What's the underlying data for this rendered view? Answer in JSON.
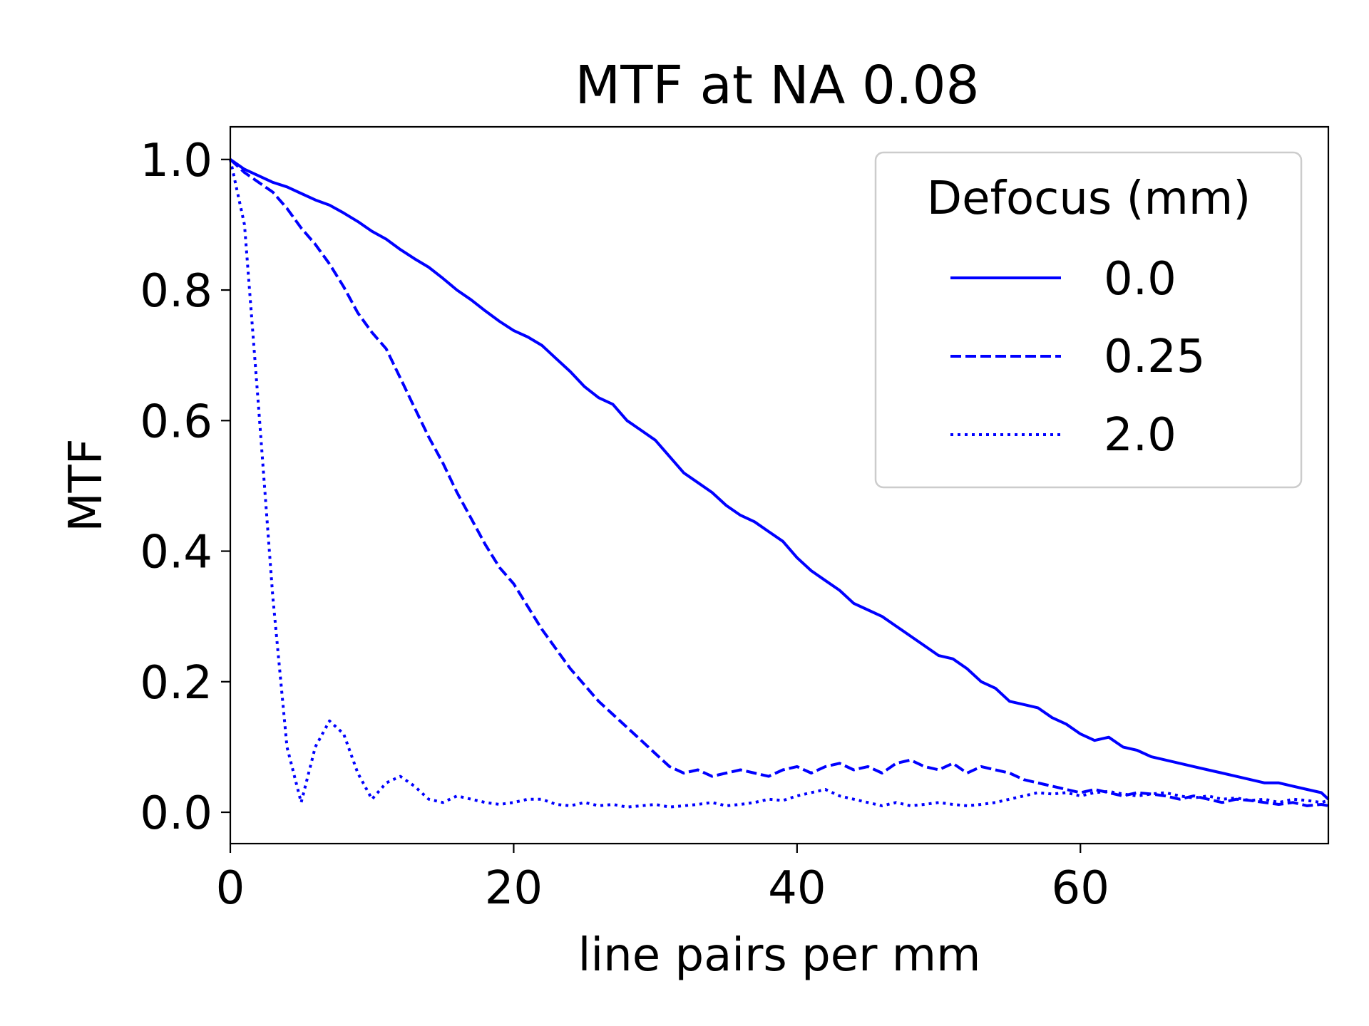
{
  "chart_data": {
    "type": "line",
    "title": "MTF at NA 0.08",
    "xlabel": "line pairs per mm",
    "ylabel": "MTF",
    "xlim": [
      0,
      77.5
    ],
    "ylim": [
      -0.048,
      1.05
    ],
    "xticks": [
      0,
      20,
      40,
      60
    ],
    "xtick_labels": [
      "0",
      "20",
      "40",
      "60"
    ],
    "yticks": [
      0.0,
      0.2,
      0.4,
      0.6,
      0.8,
      1.0
    ],
    "ytick_labels": [
      "0.0",
      "0.2",
      "0.4",
      "0.6",
      "0.8",
      "1.0"
    ],
    "grid": false,
    "line_color": "#0000ff",
    "legend": {
      "title": "Defocus (mm)",
      "position": "top-right",
      "entries": [
        "0.0",
        "0.25",
        "2.0"
      ]
    },
    "series": [
      {
        "name": "0.0",
        "style": "solid",
        "x": [
          0,
          1,
          2,
          3,
          4,
          5,
          6,
          7,
          8,
          9,
          10,
          11,
          12,
          13,
          14,
          15,
          16,
          17,
          18,
          19,
          20,
          21,
          22,
          23,
          24,
          25,
          26,
          27,
          28,
          29,
          30,
          31,
          32,
          33,
          34,
          35,
          36,
          37,
          38,
          39,
          40,
          41,
          42,
          43,
          44,
          45,
          46,
          47,
          48,
          49,
          50,
          51,
          52,
          53,
          54,
          55,
          56,
          57,
          58,
          59,
          60,
          61,
          62,
          63,
          64,
          65,
          66,
          67,
          68,
          69,
          70,
          71,
          72,
          73,
          74,
          75,
          76,
          77,
          77.5
        ],
        "y": [
          1.0,
          0.985,
          0.975,
          0.965,
          0.958,
          0.948,
          0.938,
          0.93,
          0.918,
          0.905,
          0.89,
          0.878,
          0.862,
          0.848,
          0.835,
          0.818,
          0.8,
          0.785,
          0.768,
          0.752,
          0.738,
          0.728,
          0.715,
          0.695,
          0.675,
          0.652,
          0.635,
          0.625,
          0.6,
          0.585,
          0.57,
          0.545,
          0.52,
          0.505,
          0.49,
          0.47,
          0.455,
          0.445,
          0.43,
          0.415,
          0.39,
          0.37,
          0.355,
          0.34,
          0.32,
          0.31,
          0.3,
          0.285,
          0.27,
          0.255,
          0.24,
          0.235,
          0.22,
          0.2,
          0.19,
          0.17,
          0.165,
          0.16,
          0.145,
          0.135,
          0.12,
          0.11,
          0.115,
          0.1,
          0.095,
          0.085,
          0.08,
          0.075,
          0.07,
          0.065,
          0.06,
          0.055,
          0.05,
          0.045,
          0.045,
          0.04,
          0.035,
          0.03,
          0.02
        ]
      },
      {
        "name": "0.25",
        "style": "dashed",
        "x": [
          0,
          1,
          2,
          3,
          4,
          5,
          6,
          7,
          8,
          9,
          10,
          11,
          12,
          13,
          14,
          15,
          16,
          17,
          18,
          19,
          20,
          21,
          22,
          23,
          24,
          25,
          26,
          27,
          28,
          29,
          30,
          31,
          32,
          33,
          34,
          35,
          36,
          37,
          38,
          39,
          40,
          41,
          42,
          43,
          44,
          45,
          46,
          47,
          48,
          49,
          50,
          51,
          52,
          53,
          54,
          55,
          56,
          57,
          58,
          59,
          60,
          61,
          62,
          63,
          64,
          65,
          66,
          67,
          68,
          69,
          70,
          71,
          72,
          73,
          74,
          75,
          76,
          77,
          77.5
        ],
        "y": [
          1.0,
          0.98,
          0.965,
          0.95,
          0.925,
          0.895,
          0.87,
          0.84,
          0.805,
          0.765,
          0.735,
          0.71,
          0.665,
          0.62,
          0.575,
          0.535,
          0.49,
          0.45,
          0.41,
          0.375,
          0.35,
          0.315,
          0.28,
          0.25,
          0.22,
          0.195,
          0.17,
          0.15,
          0.13,
          0.11,
          0.09,
          0.07,
          0.06,
          0.065,
          0.055,
          0.06,
          0.065,
          0.06,
          0.055,
          0.065,
          0.07,
          0.06,
          0.07,
          0.075,
          0.065,
          0.07,
          0.06,
          0.075,
          0.08,
          0.07,
          0.065,
          0.075,
          0.06,
          0.07,
          0.065,
          0.06,
          0.05,
          0.045,
          0.04,
          0.035,
          0.03,
          0.035,
          0.03,
          0.025,
          0.03,
          0.028,
          0.025,
          0.02,
          0.025,
          0.02,
          0.015,
          0.02,
          0.018,
          0.015,
          0.012,
          0.015,
          0.01,
          0.012,
          0.01
        ]
      },
      {
        "name": "2.0",
        "style": "dotted",
        "x": [
          0,
          1,
          2,
          3,
          4,
          5,
          6,
          7,
          8,
          9,
          10,
          11,
          12,
          13,
          14,
          15,
          16,
          17,
          18,
          19,
          20,
          21,
          22,
          23,
          24,
          25,
          26,
          27,
          28,
          29,
          30,
          31,
          32,
          33,
          34,
          35,
          36,
          37,
          38,
          39,
          40,
          41,
          42,
          43,
          44,
          45,
          46,
          47,
          48,
          49,
          50,
          51,
          52,
          53,
          54,
          55,
          56,
          57,
          58,
          59,
          60,
          61,
          62,
          63,
          64,
          65,
          66,
          67,
          68,
          69,
          70,
          71,
          72,
          73,
          74,
          75,
          76,
          77,
          77.5
        ],
        "y": [
          1.0,
          0.9,
          0.62,
          0.33,
          0.1,
          0.015,
          0.1,
          0.14,
          0.12,
          0.06,
          0.02,
          0.045,
          0.055,
          0.04,
          0.02,
          0.015,
          0.025,
          0.02,
          0.015,
          0.012,
          0.015,
          0.02,
          0.02,
          0.012,
          0.01,
          0.015,
          0.01,
          0.012,
          0.008,
          0.01,
          0.012,
          0.008,
          0.01,
          0.012,
          0.015,
          0.01,
          0.012,
          0.015,
          0.02,
          0.018,
          0.025,
          0.03,
          0.035,
          0.025,
          0.02,
          0.015,
          0.01,
          0.015,
          0.01,
          0.012,
          0.015,
          0.012,
          0.01,
          0.012,
          0.015,
          0.02,
          0.025,
          0.03,
          0.028,
          0.03,
          0.025,
          0.03,
          0.032,
          0.028,
          0.025,
          0.028,
          0.03,
          0.025,
          0.022,
          0.025,
          0.02,
          0.022,
          0.018,
          0.02,
          0.015,
          0.02,
          0.018,
          0.015,
          0.018
        ]
      }
    ]
  }
}
